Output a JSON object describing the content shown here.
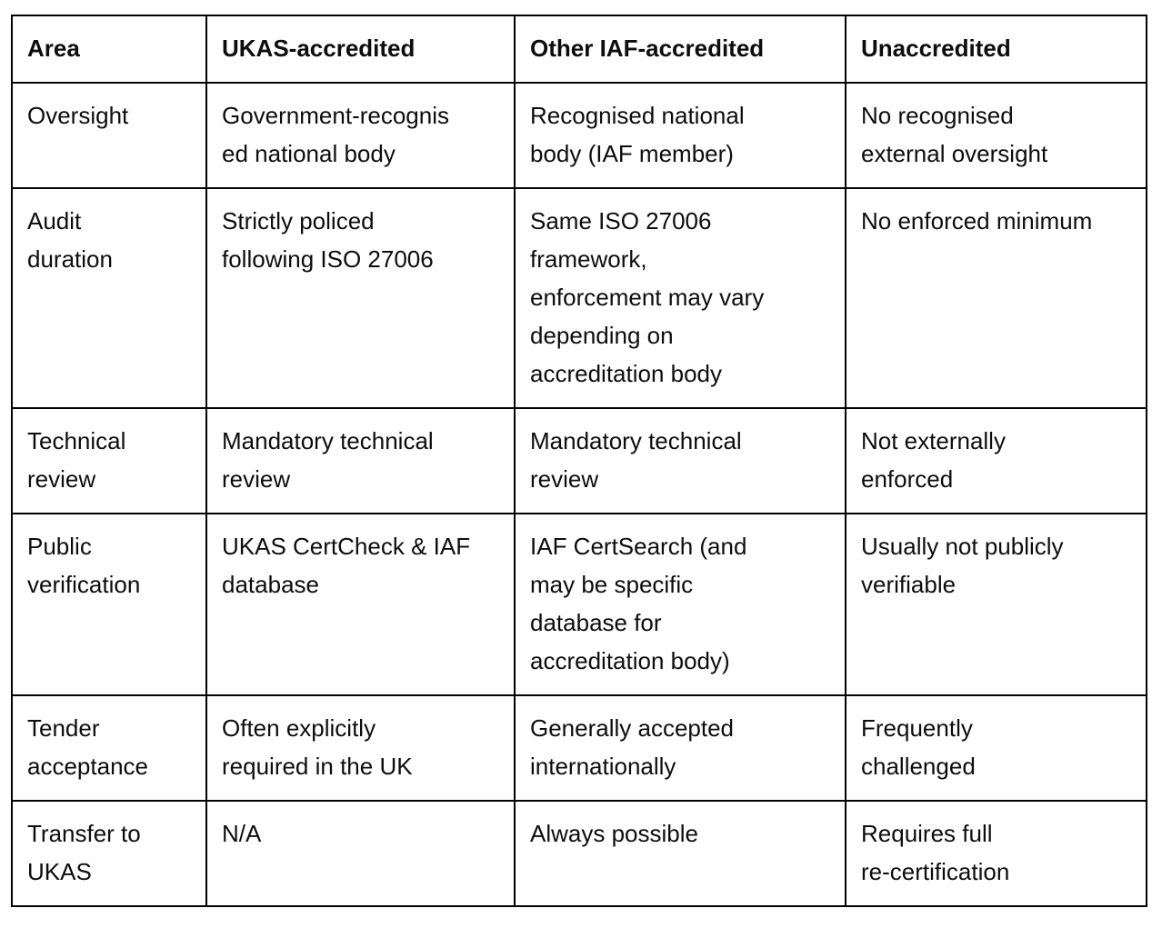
{
  "table": {
    "headers": [
      "Area",
      "UKAS-accredited",
      "Other IAF-accredited",
      "Unaccredited"
    ],
    "rows": [
      [
        "Oversight",
        "Government-recognis\ned national body",
        "Recognised national\nbody (IAF member)",
        "No recognised\nexternal oversight"
      ],
      [
        "Audit\nduration",
        "Strictly policed\nfollowing ISO 27006",
        "Same ISO 27006\nframework,\nenforcement may vary\ndepending on\naccreditation body",
        "No enforced minimum"
      ],
      [
        "Technical\nreview",
        "Mandatory technical\nreview",
        "Mandatory technical\nreview",
        "Not externally\nenforced"
      ],
      [
        "Public\nverification",
        "UKAS CertCheck & IAF\ndatabase",
        "IAF CertSearch (and\nmay be specific\ndatabase for\naccreditation body)",
        "Usually not publicly\nverifiable"
      ],
      [
        "Tender\nacceptance",
        "Often explicitly\nrequired in the UK",
        "Generally accepted\ninternationally",
        "Frequently\nchallenged"
      ],
      [
        "Transfer to\nUKAS",
        "N/A",
        "Always possible",
        "Requires full\nre-certification"
      ]
    ],
    "colors": {
      "border": "#000000",
      "text": "#0d0d0d",
      "background": "#ffffff"
    }
  }
}
